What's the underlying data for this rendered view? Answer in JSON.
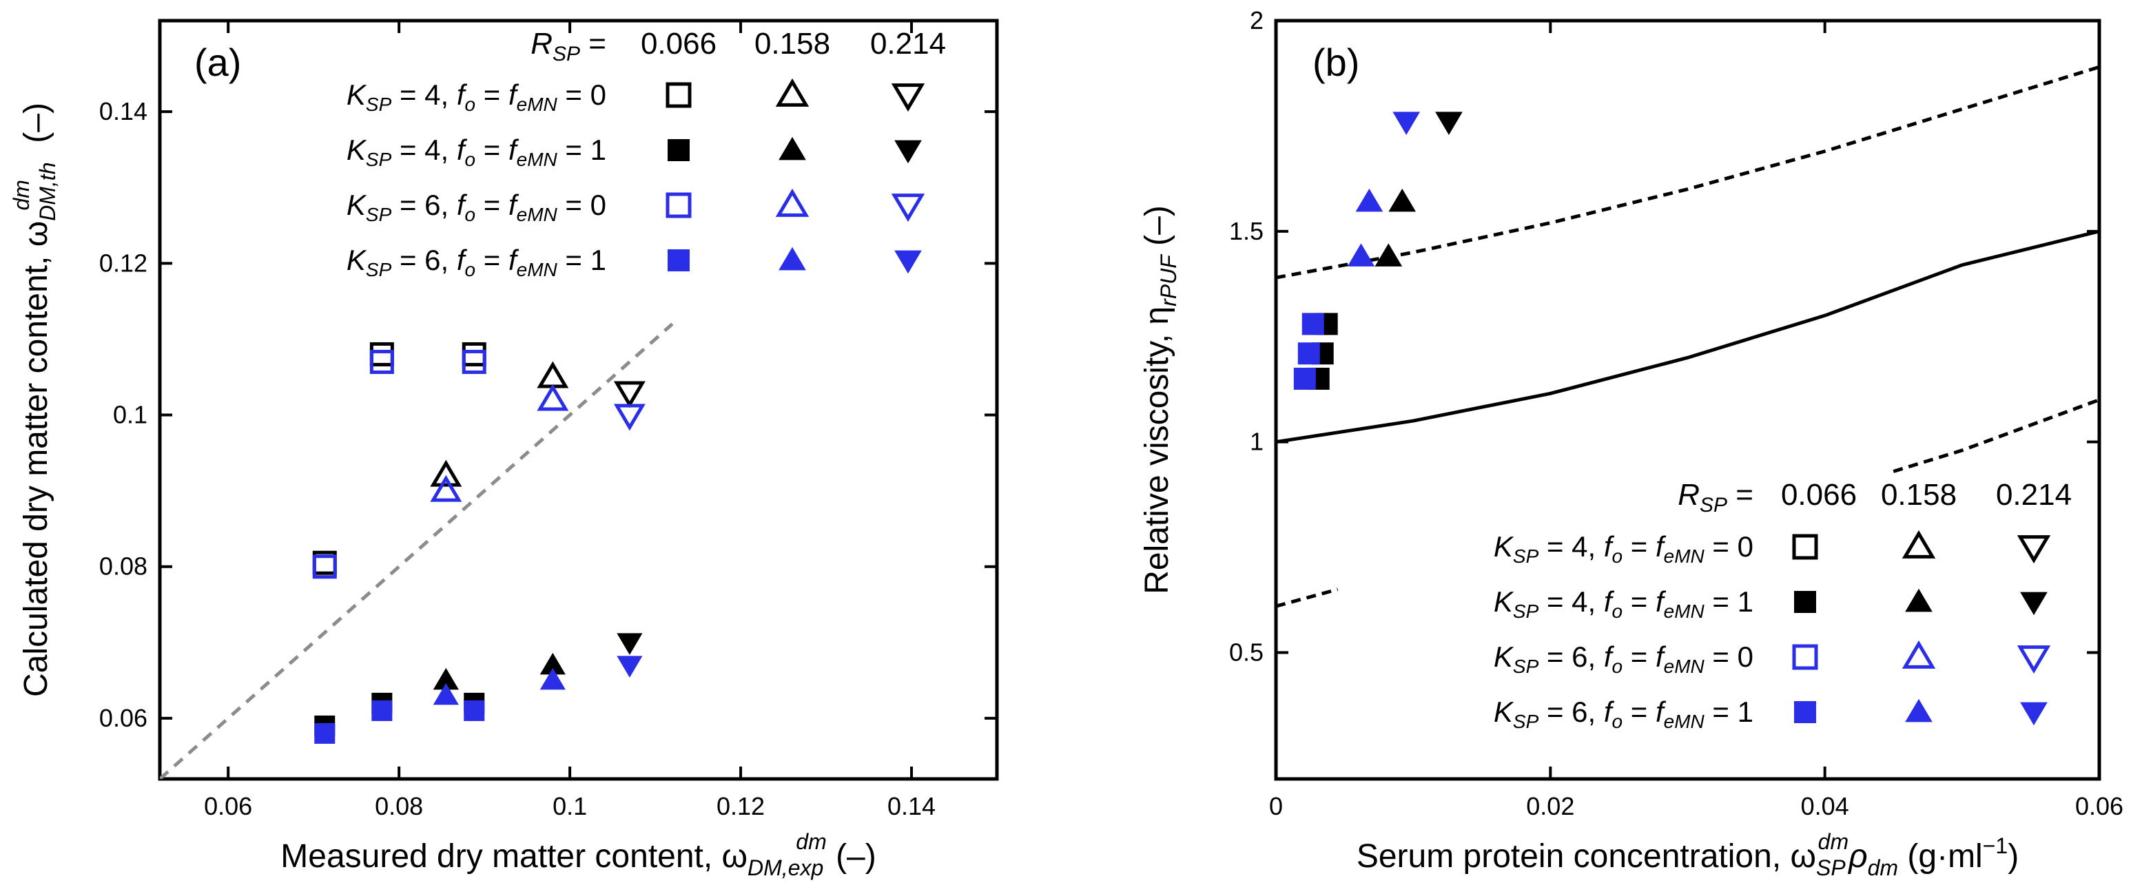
{
  "colors": {
    "black": "#000000",
    "blue": "#2a2ee6",
    "light_blue": "#4a5cf0",
    "grey": "#8c8c8c"
  },
  "chart_data": [
    {
      "type": "scatter",
      "panel_label": "(a)",
      "xlabel": "Measured dry matter content, ω",
      "xlabel_sub": "DM,exp",
      "xlabel_sup": "dm",
      "xlabel_unit": " (–)",
      "ylabel": "Calculated dry matter content, ω",
      "ylabel_sub": "DM,th",
      "ylabel_sup": "dm",
      "ylabel_unit": " (–)",
      "xlim": [
        0.052,
        0.15
      ],
      "ylim": [
        0.052,
        0.152
      ],
      "xticks": [
        0.06,
        0.08,
        0.1,
        0.12,
        0.14
      ],
      "xtick_labels": [
        "0.06",
        "0.08",
        "0.1",
        "0.12",
        "0.14"
      ],
      "yticks": [
        0.06,
        0.08,
        0.1,
        0.12,
        0.14
      ],
      "ytick_labels": [
        "0.06",
        "0.08",
        "0.1",
        "0.12",
        "0.14"
      ],
      "reference_line": {
        "style": "dashed",
        "x": [
          0.052,
          0.112
        ],
        "y": [
          0.052,
          0.112
        ]
      },
      "legend": {
        "rsp_title": "R",
        "rsp_title_sub": "SP",
        "rsp_equals": " =",
        "rsp_values": [
          "0.066",
          "0.158",
          "0.214"
        ],
        "rows": [
          {
            "k": "K",
            "k_sub": "SP",
            "text": " = 4, f",
            "fo_sub": "o",
            "mid": " = f",
            "fe_sub": "eMN",
            "end": " = 0",
            "color": "black",
            "filled": false
          },
          {
            "k": "K",
            "k_sub": "SP",
            "text": " = 4, f",
            "fo_sub": "o",
            "mid": " = f",
            "fe_sub": "eMN",
            "end": " = 1",
            "color": "black",
            "filled": true
          },
          {
            "k": "K",
            "k_sub": "SP",
            "text": " = 6, f",
            "fo_sub": "o",
            "mid": " = f",
            "fe_sub": "eMN",
            "end": " = 0",
            "color": "blue",
            "filled": false
          },
          {
            "k": "K",
            "k_sub": "SP",
            "text": " = 6, f",
            "fo_sub": "o",
            "mid": " = f",
            "fe_sub": "eMN",
            "end": " = 1",
            "color": "blue",
            "filled": true
          }
        ]
      },
      "series": [
        {
          "name": "KSP=4, open, RSP=0.066",
          "marker": "square",
          "color": "black",
          "filled": false,
          "x": [
            0.0713,
            0.078,
            0.0888
          ],
          "y": [
            0.0805,
            0.108,
            0.108
          ]
        },
        {
          "name": "KSP=4, open, RSP=0.158",
          "marker": "triangle-up",
          "color": "black",
          "filled": false,
          "x": [
            0.0855,
            0.098
          ],
          "y": [
            0.092,
            0.105
          ]
        },
        {
          "name": "KSP=4, open, RSP=0.214",
          "marker": "triangle-down",
          "color": "black",
          "filled": false,
          "x": [
            0.107
          ],
          "y": [
            0.103
          ]
        },
        {
          "name": "KSP=4, filled, RSP=0.066",
          "marker": "square",
          "color": "black",
          "filled": true,
          "x": [
            0.0713,
            0.078,
            0.0888
          ],
          "y": [
            0.059,
            0.062,
            0.062
          ]
        },
        {
          "name": "KSP=4, filled, RSP=0.158",
          "marker": "triangle-up",
          "color": "black",
          "filled": true,
          "x": [
            0.0855,
            0.098
          ],
          "y": [
            0.065,
            0.067
          ]
        },
        {
          "name": "KSP=4, filled, RSP=0.214",
          "marker": "triangle-down",
          "color": "black",
          "filled": true,
          "x": [
            0.107
          ],
          "y": [
            0.07
          ]
        },
        {
          "name": "KSP=6, open, RSP=0.066",
          "marker": "square",
          "color": "blue",
          "filled": false,
          "x": [
            0.0713,
            0.078,
            0.0888
          ],
          "y": [
            0.08,
            0.107,
            0.107
          ]
        },
        {
          "name": "KSP=6, open, RSP=0.158",
          "marker": "triangle-up",
          "color": "blue",
          "filled": false,
          "x": [
            0.0855,
            0.098
          ],
          "y": [
            0.09,
            0.102
          ]
        },
        {
          "name": "KSP=6, open, RSP=0.214",
          "marker": "triangle-down",
          "color": "blue",
          "filled": false,
          "x": [
            0.107
          ],
          "y": [
            0.1
          ]
        },
        {
          "name": "KSP=6, filled, RSP=0.066",
          "marker": "square",
          "color": "blue",
          "filled": true,
          "x": [
            0.0713,
            0.078,
            0.0888
          ],
          "y": [
            0.058,
            0.061,
            0.061
          ]
        },
        {
          "name": "KSP=6, filled, RSP=0.158",
          "marker": "triangle-up",
          "color": "blue",
          "filled": true,
          "x": [
            0.0855,
            0.098
          ],
          "y": [
            0.063,
            0.065
          ]
        },
        {
          "name": "KSP=6, filled, RSP=0.214",
          "marker": "triangle-down",
          "color": "blue",
          "filled": true,
          "x": [
            0.107
          ],
          "y": [
            0.067
          ]
        }
      ]
    },
    {
      "type": "scatter",
      "panel_label": "(b)",
      "xlabel": "Serum protein concentration, ω",
      "xlabel_sub": "SP",
      "xlabel_sup": "dm",
      "xlabel_rho": "ρ",
      "xlabel_rho_sub": "dm",
      "xlabel_unit": " (g·ml",
      "xlabel_unit_sup": "−1",
      "xlabel_unit_end": ")",
      "ylabel": "Relative viscosity, η",
      "ylabel_sub": "rPUF",
      "ylabel_unit": " (–)",
      "xlim": [
        0,
        0.06
      ],
      "ylim": [
        0.2,
        2.0
      ],
      "xticks": [
        0,
        0.02,
        0.04,
        0.06
      ],
      "xtick_labels": [
        "0",
        "0.02",
        "0.04",
        "0.06"
      ],
      "yticks": [
        0.5,
        1.0,
        1.5,
        2.0
      ],
      "ytick_labels": [
        "0.5",
        "1",
        "1.5",
        "2"
      ],
      "curves": [
        {
          "name": "model",
          "style": "solid",
          "x": [
            0,
            0.01,
            0.02,
            0.03,
            0.04,
            0.05,
            0.06
          ],
          "y": [
            1.0,
            1.05,
            1.115,
            1.2,
            1.3,
            1.42,
            1.5
          ]
        },
        {
          "name": "upper bound",
          "style": "dashed",
          "x": [
            0,
            0.01,
            0.02,
            0.03,
            0.04,
            0.05,
            0.06
          ],
          "y": [
            1.39,
            1.45,
            1.52,
            1.6,
            1.69,
            1.79,
            1.89
          ]
        },
        {
          "name": "lower bound left",
          "style": "dashed",
          "x": [
            0,
            0.0045
          ],
          "y": [
            0.61,
            0.65
          ]
        },
        {
          "name": "lower bound right",
          "style": "dashed",
          "x": [
            0.045,
            0.05,
            0.055,
            0.06
          ],
          "y": [
            0.93,
            0.98,
            1.04,
            1.1
          ]
        }
      ],
      "legend": {
        "rsp_title": "R",
        "rsp_title_sub": "SP",
        "rsp_equals": " =",
        "rsp_values": [
          "0.066",
          "0.158",
          "0.214"
        ],
        "rows": [
          {
            "k": "K",
            "k_sub": "SP",
            "text": " = 4, f",
            "fo_sub": "o",
            "mid": " = f",
            "fe_sub": "eMN",
            "end": " = 0",
            "color": "black",
            "filled": false
          },
          {
            "k": "K",
            "k_sub": "SP",
            "text": " = 4, f",
            "fo_sub": "o",
            "mid": " = f",
            "fe_sub": "eMN",
            "end": " = 1",
            "color": "black",
            "filled": true
          },
          {
            "k": "K",
            "k_sub": "SP",
            "text": " = 6, f",
            "fo_sub": "o",
            "mid": " = f",
            "fe_sub": "eMN",
            "end": " = 0",
            "color": "blue",
            "filled": false
          },
          {
            "k": "K",
            "k_sub": "SP",
            "text": " = 6, f",
            "fo_sub": "o",
            "mid": " = f",
            "fe_sub": "eMN",
            "end": " = 1",
            "color": "blue",
            "filled": true
          }
        ]
      },
      "series": [
        {
          "name": "KSP=4, filled, RSP=0.066",
          "marker": "square",
          "color": "black",
          "filled": true,
          "x": [
            0.0031,
            0.0034,
            0.0037
          ],
          "y": [
            1.15,
            1.21,
            1.28
          ]
        },
        {
          "name": "KSP=4, filled, RSP=0.158",
          "marker": "triangle-up",
          "color": "black",
          "filled": true,
          "x": [
            0.0082,
            0.0092
          ],
          "y": [
            1.44,
            1.57
          ]
        },
        {
          "name": "KSP=4, filled, RSP=0.214",
          "marker": "triangle-down",
          "color": "black",
          "filled": true,
          "x": [
            0.0126
          ],
          "y": [
            1.76
          ]
        },
        {
          "name": "KSP=6, filled, RSP=0.066",
          "marker": "square",
          "color": "blue",
          "filled": true,
          "x": [
            0.0021,
            0.0024,
            0.0027
          ],
          "y": [
            1.15,
            1.21,
            1.28
          ]
        },
        {
          "name": "KSP=6, filled, RSP=0.158",
          "marker": "triangle-up",
          "color": "blue",
          "filled": true,
          "x": [
            0.0062,
            0.0068
          ],
          "y": [
            1.44,
            1.57
          ]
        },
        {
          "name": "KSP=6, filled, RSP=0.214",
          "marker": "triangle-down",
          "color": "blue",
          "filled": true,
          "x": [
            0.0095
          ],
          "y": [
            1.76
          ]
        }
      ]
    }
  ]
}
